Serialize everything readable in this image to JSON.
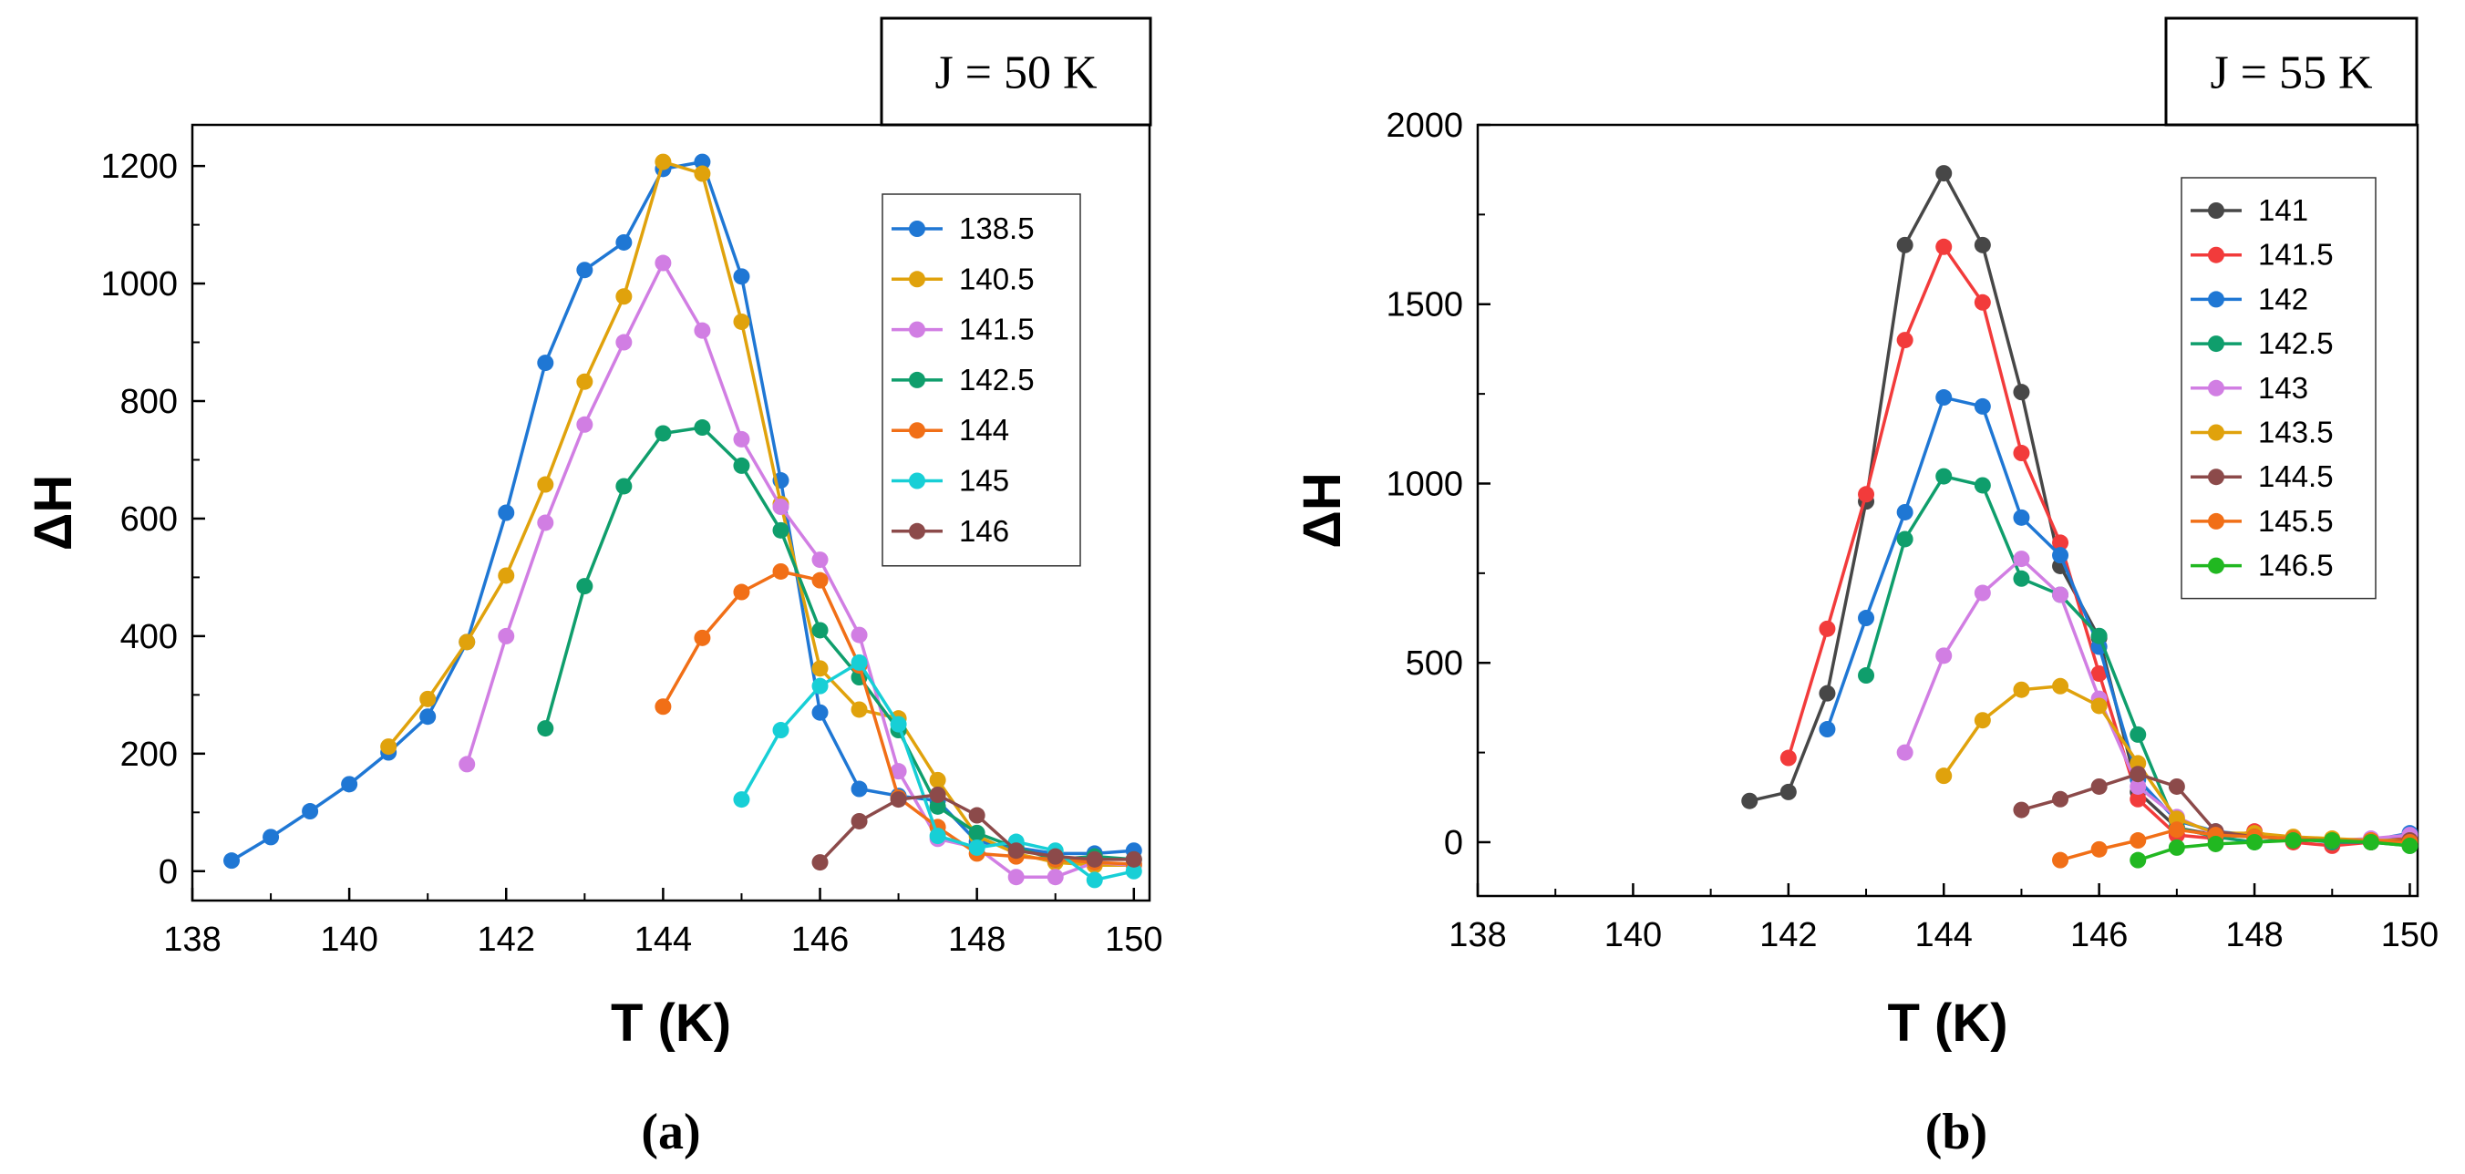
{
  "chart_data": [
    {
      "type": "line",
      "panel_label": "(a)",
      "title": "J = 50 K",
      "xlabel": "T (K)",
      "ylabel": "ΔH",
      "xlim": [
        138,
        150.2
      ],
      "ylim": [
        -50,
        1270
      ],
      "xticks": [
        138,
        140,
        142,
        144,
        146,
        148,
        150
      ],
      "yticks": [
        0,
        200,
        400,
        600,
        800,
        1000,
        1200
      ],
      "legend_position": "top-right",
      "series": [
        {
          "name": "138.5",
          "color": "#1f77d4",
          "x": [
            138.5,
            139,
            139.5,
            140,
            140.5,
            141,
            141.5,
            142,
            142.5,
            143,
            143.5,
            144,
            144.5,
            145,
            145.5,
            146,
            146.5,
            147,
            147.5,
            148,
            148.5,
            149,
            149.5,
            150
          ],
          "y": [
            18,
            58,
            102,
            148,
            202,
            263,
            390,
            610,
            865,
            1023,
            1070,
            1195,
            1207,
            1012,
            665,
            270,
            140,
            128,
            120,
            50,
            40,
            30,
            30,
            35
          ]
        },
        {
          "name": "140.5",
          "color": "#e0a20c",
          "x": [
            140.5,
            141,
            141.5,
            142,
            142.5,
            143,
            143.5,
            144,
            144.5,
            145,
            145.5,
            146,
            146.5,
            147,
            147.5,
            148,
            148.5,
            149,
            149.5,
            150
          ],
          "y": [
            212,
            293,
            390,
            503,
            658,
            833,
            978,
            1207,
            1187,
            935,
            625,
            345,
            275,
            260,
            155,
            60,
            30,
            15,
            10,
            10
          ]
        },
        {
          "name": "141.5",
          "color": "#d17ee3",
          "x": [
            141.5,
            142,
            142.5,
            143,
            143.5,
            144,
            144.5,
            145,
            145.5,
            146,
            146.5,
            147,
            147.5,
            148,
            148.5,
            149,
            149.5,
            150
          ],
          "y": [
            182,
            400,
            593,
            760,
            900,
            1035,
            920,
            735,
            620,
            530,
            402,
            170,
            55,
            40,
            -10,
            -10,
            15,
            10
          ]
        },
        {
          "name": "142.5",
          "color": "#0f9e6c",
          "x": [
            142.5,
            143,
            143.5,
            144,
            144.5,
            145,
            145.5,
            146,
            146.5,
            147,
            147.5,
            148,
            148.5,
            149,
            149.5,
            150
          ],
          "y": [
            243,
            485,
            655,
            745,
            755,
            690,
            580,
            410,
            330,
            240,
            110,
            65,
            40,
            20,
            25,
            20
          ]
        },
        {
          "name": "144",
          "color": "#f16f17",
          "x": [
            144,
            144.5,
            145,
            145.5,
            146,
            146.5,
            147,
            147.5,
            148,
            148.5,
            149,
            149.5,
            150
          ],
          "y": [
            280,
            397,
            475,
            510,
            495,
            350,
            125,
            75,
            30,
            25,
            20,
            15,
            12
          ]
        },
        {
          "name": "145",
          "color": "#17cfd6",
          "x": [
            145,
            145.5,
            146,
            146.5,
            147,
            147.5,
            148,
            148.5,
            149,
            149.5,
            150
          ],
          "y": [
            122,
            240,
            315,
            355,
            250,
            60,
            40,
            50,
            35,
            -15,
            0
          ]
        },
        {
          "name": "146",
          "color": "#8c4a4a",
          "x": [
            146,
            146.5,
            147,
            147.5,
            148,
            148.5,
            149,
            149.5,
            150
          ],
          "y": [
            15,
            85,
            122,
            130,
            95,
            35,
            25,
            20,
            20
          ]
        }
      ]
    },
    {
      "type": "line",
      "panel_label": "(b)",
      "title": "J = 55 K",
      "xlabel": "T (K)",
      "ylabel": "ΔH",
      "xlim": [
        138,
        150.1
      ],
      "ylim": [
        -150,
        2000
      ],
      "xticks": [
        138,
        140,
        142,
        144,
        146,
        148,
        150
      ],
      "yticks": [
        0,
        500,
        1000,
        1500,
        2000
      ],
      "legend_position": "top-right",
      "series": [
        {
          "name": "141",
          "color": "#474747",
          "x": [
            141.5,
            142,
            142.5,
            143,
            143.5,
            144,
            144.5,
            145,
            145.5,
            146,
            146.5,
            147,
            147.5,
            148,
            148.5,
            149,
            149.5,
            150
          ],
          "y": [
            115,
            140,
            415,
            950,
            1665,
            1865,
            1665,
            1255,
            770,
            570,
            140,
            40,
            20,
            15,
            10,
            5,
            5,
            10
          ]
        },
        {
          "name": "141.5",
          "color": "#f23b3b",
          "x": [
            142,
            142.5,
            143,
            143.5,
            144,
            144.5,
            145,
            145.5,
            146,
            146.5,
            147,
            147.5,
            148,
            148.5,
            149,
            149.5,
            150
          ],
          "y": [
            235,
            595,
            970,
            1400,
            1660,
            1505,
            1085,
            835,
            470,
            120,
            20,
            10,
            30,
            0,
            -10,
            0,
            10
          ]
        },
        {
          "name": "142",
          "color": "#1f77d4",
          "x": [
            142.5,
            143,
            143.5,
            144,
            144.5,
            145,
            145.5,
            146,
            146.5,
            147,
            147.5,
            148,
            148.5,
            149,
            149.5,
            150
          ],
          "y": [
            315,
            625,
            920,
            1240,
            1215,
            905,
            800,
            545,
            175,
            60,
            30,
            20,
            10,
            5,
            5,
            25
          ]
        },
        {
          "name": "142.5",
          "color": "#0f9e6c",
          "x": [
            143,
            143.5,
            144,
            144.5,
            145,
            145.5,
            146,
            146.5,
            147,
            147.5,
            148,
            148.5,
            149,
            149.5,
            150
          ],
          "y": [
            465,
            845,
            1020,
            995,
            735,
            690,
            575,
            300,
            40,
            15,
            0,
            10,
            0,
            0,
            -10
          ]
        },
        {
          "name": "143",
          "color": "#d17ee3",
          "x": [
            143.5,
            144,
            144.5,
            145,
            145.5,
            146,
            146.5,
            147,
            147.5,
            148,
            148.5,
            149,
            149.5,
            150
          ],
          "y": [
            250,
            520,
            695,
            790,
            690,
            400,
            155,
            70,
            20,
            20,
            10,
            5,
            10,
            20
          ]
        },
        {
          "name": "143.5",
          "color": "#e0a20c",
          "x": [
            144,
            144.5,
            145,
            145.5,
            146,
            146.5,
            147,
            147.5,
            148,
            148.5,
            149,
            149.5,
            150
          ],
          "y": [
            185,
            340,
            425,
            435,
            380,
            220,
            65,
            25,
            25,
            15,
            10,
            5,
            5
          ]
        },
        {
          "name": "144.5",
          "color": "#8c4a4a",
          "x": [
            145,
            145.5,
            146,
            146.5,
            147,
            147.5,
            148,
            148.5,
            149,
            149.5,
            150
          ],
          "y": [
            90,
            120,
            155,
            190,
            155,
            30,
            15,
            10,
            5,
            0,
            5
          ]
        },
        {
          "name": "145.5",
          "color": "#f16f17",
          "x": [
            145.5,
            146,
            146.5,
            147,
            147.5,
            148,
            148.5,
            149,
            149.5,
            150
          ],
          "y": [
            -50,
            -20,
            5,
            35,
            20,
            15,
            10,
            5,
            5,
            0
          ]
        },
        {
          "name": "146.5",
          "color": "#21b821",
          "x": [
            146.5,
            147,
            147.5,
            148,
            148.5,
            149,
            149.5,
            150
          ],
          "y": [
            -50,
            -15,
            -5,
            0,
            5,
            5,
            0,
            -10
          ]
        }
      ]
    }
  ]
}
